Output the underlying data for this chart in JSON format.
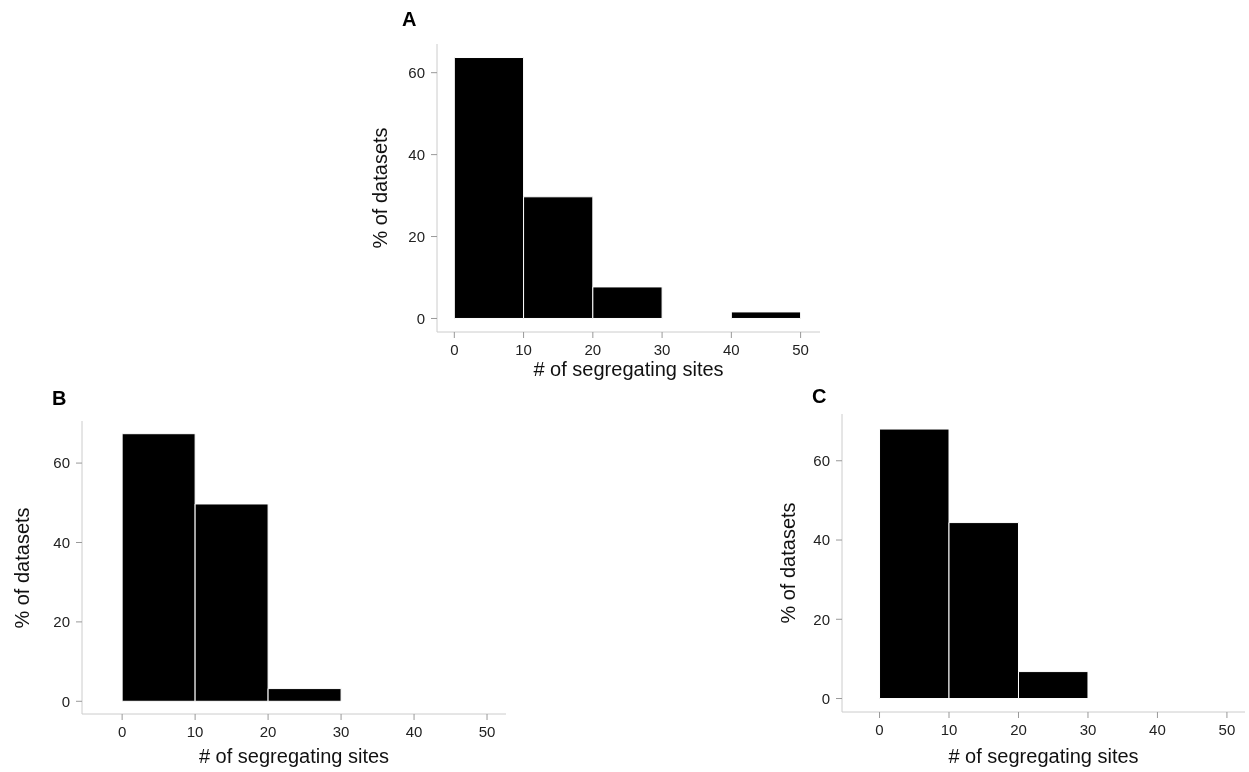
{
  "chart_data": [
    {
      "type": "histogram",
      "title": "A",
      "xlabel": "# of segregating sites",
      "ylabel": "% of datasets",
      "bins": [
        0,
        10,
        20,
        30,
        40,
        50
      ],
      "values": [
        63.7,
        29.7,
        7.7,
        0,
        1.6
      ],
      "color": "#000000",
      "xlim": [
        -2.5,
        52.8
      ],
      "ylim": [
        -3.3,
        67
      ],
      "xticks": [
        0,
        10,
        20,
        30,
        40,
        50
      ],
      "yticks": [
        0,
        20,
        40,
        60
      ]
    },
    {
      "type": "histogram",
      "title": "B",
      "xlabel": "# of segregating sites",
      "ylabel": "% of datasets",
      "bins": [
        0,
        10,
        20,
        30,
        40,
        50
      ],
      "values": [
        67.4,
        49.7,
        3.2,
        0,
        0
      ],
      "color": "#000000",
      "xlim": [
        -5.5,
        52.6
      ],
      "ylim": [
        -3.2,
        70.6
      ],
      "xticks": [
        0,
        10,
        20,
        30,
        40,
        50
      ],
      "yticks": [
        0,
        20,
        40,
        60
      ]
    },
    {
      "type": "histogram",
      "title": "C",
      "xlabel": "# of segregating sites",
      "ylabel": "% of datasets",
      "bins": [
        0,
        10,
        20,
        30,
        40,
        50
      ],
      "values": [
        68.0,
        44.4,
        6.8,
        0,
        0
      ],
      "color": "#000000",
      "xlim": [
        -5.4,
        52.6
      ],
      "ylim": [
        -3.4,
        71.8
      ],
      "xticks": [
        0,
        10,
        20,
        30,
        40,
        50
      ],
      "yticks": [
        0,
        20,
        40,
        60
      ]
    }
  ]
}
